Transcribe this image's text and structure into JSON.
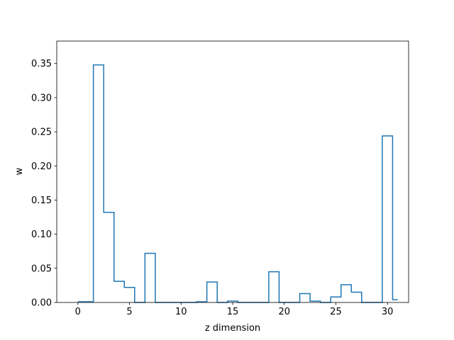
{
  "chart_data": {
    "type": "step",
    "title": "",
    "xlabel": "z dimension",
    "ylabel": "w",
    "xlim": [
      -2.05,
      32.05
    ],
    "ylim": [
      0,
      0.3829
    ],
    "xticks": [
      0,
      5,
      10,
      15,
      20,
      25,
      30
    ],
    "xtick_labels": [
      "0",
      "5",
      "10",
      "15",
      "20",
      "25",
      "30"
    ],
    "yticks": [
      0.0,
      0.05,
      0.1,
      0.15,
      0.2,
      0.25,
      0.3,
      0.35
    ],
    "ytick_labels": [
      "0.00",
      "0.05",
      "0.10",
      "0.15",
      "0.20",
      "0.25",
      "0.30",
      "0.35"
    ],
    "grid": false,
    "line_color": "#1f77b4",
    "series": [
      {
        "x": [
          0,
          1,
          2,
          3,
          4,
          5,
          6,
          7,
          8,
          9,
          10,
          11,
          12,
          13,
          14,
          15,
          16,
          17,
          18,
          19,
          20,
          21,
          22,
          23,
          24,
          25,
          26,
          27,
          28,
          29,
          30,
          31
        ],
        "values": [
          0.001,
          0.001,
          0.348,
          0.132,
          0.031,
          0.022,
          0.0,
          0.072,
          0.0,
          0.0,
          0.0,
          0.0,
          0.001,
          0.03,
          0.0,
          0.002,
          0.0,
          0.0,
          0.0,
          0.045,
          0.0,
          0.0,
          0.013,
          0.002,
          0.0,
          0.008,
          0.026,
          0.015,
          0.0,
          0.0,
          0.244,
          0.004
        ]
      }
    ]
  }
}
